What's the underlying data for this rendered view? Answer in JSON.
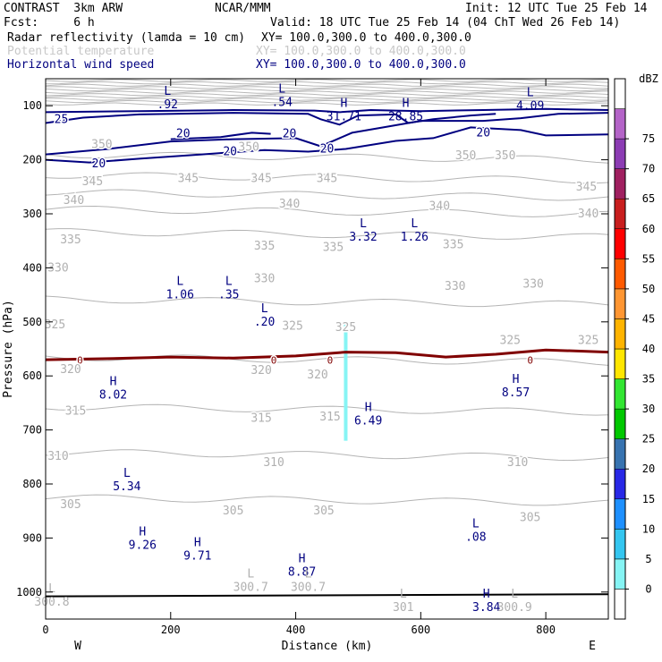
{
  "header": {
    "model": "CONTRAST  3km ARW",
    "org": "NCAR/MMM",
    "init": "Init: 12 UTC Tue 25 Feb 14",
    "fcst": "Fcst:     6 h",
    "valid": "Valid: 18 UTC Tue 25 Feb 14 (04 ChT Wed 26 Feb 14)",
    "fields": [
      {
        "name": "Radar reflectivity (lamda = 10 cm)",
        "xy": "XY= 100.0,300.0 to 400.0,300.0",
        "color": "#000000"
      },
      {
        "name": "Potential temperature",
        "xy": "XY= 100.0,300.0 to 400.0,300.0",
        "color": "#c8c8c8"
      },
      {
        "name": "Horizontal wind speed",
        "xy": "XY= 100.0,300.0 to 400.0,300.0",
        "color": "#000080"
      }
    ]
  },
  "chart_data": {
    "type": "cross-section contour",
    "xlabel": "Distance (km)",
    "ylabel": "Pressure (hPa)",
    "xlim": [
      0,
      900
    ],
    "ylim": [
      1050,
      50
    ],
    "x_ticks": [
      0,
      200,
      400,
      600,
      800
    ],
    "y_ticks": [
      100,
      200,
      300,
      400,
      500,
      600,
      700,
      800,
      900,
      1000
    ],
    "x_end_labels": {
      "left": "W",
      "right": "E"
    },
    "colorbar": {
      "unit": "dBZ",
      "levels": [
        0,
        5,
        10,
        15,
        20,
        25,
        30,
        35,
        40,
        45,
        50,
        55,
        60,
        65,
        70,
        75
      ],
      "colors": [
        "#ffffff",
        "#86f4f4",
        "#34c6f0",
        "#1e90ff",
        "#2828e6",
        "#3773b0",
        "#00c800",
        "#32e632",
        "#ffe600",
        "#ffb400",
        "#ff9632",
        "#ff5a00",
        "#ff0000",
        "#c81e1e",
        "#a02060",
        "#8c3cb4",
        "#b464c8",
        "#ffffff"
      ]
    },
    "theta_contours": [
      {
        "label": "350",
        "p": 195
      },
      {
        "label": "345",
        "p": 233
      },
      {
        "label": "340",
        "p": 265
      },
      {
        "label": "335",
        "p": 296
      },
      {
        "label": "330",
        "p": 338
      },
      {
        "label": "325",
        "p": 463
      },
      {
        "label": "320",
        "p": 570
      },
      {
        "label": "315",
        "p": 662
      },
      {
        "label": "310",
        "p": 746
      },
      {
        "label": "305",
        "p": 830
      }
    ],
    "theta_labels": [
      {
        "text": "350",
        "x": 90,
        "p": 172
      },
      {
        "text": "350",
        "x": 325,
        "p": 177
      },
      {
        "text": "350",
        "x": 672,
        "p": 192
      },
      {
        "text": "350",
        "x": 735,
        "p": 192
      },
      {
        "text": "345",
        "x": 75,
        "p": 240
      },
      {
        "text": "345",
        "x": 228,
        "p": 235
      },
      {
        "text": "345",
        "x": 345,
        "p": 235
      },
      {
        "text": "345",
        "x": 450,
        "p": 235
      },
      {
        "text": "345",
        "x": 865,
        "p": 250
      },
      {
        "text": "340",
        "x": 45,
        "p": 275
      },
      {
        "text": "340",
        "x": 390,
        "p": 282
      },
      {
        "text": "340",
        "x": 630,
        "p": 286
      },
      {
        "text": "340",
        "x": 868,
        "p": 300
      },
      {
        "text": "335",
        "x": 40,
        "p": 348
      },
      {
        "text": "335",
        "x": 350,
        "p": 360
      },
      {
        "text": "335",
        "x": 460,
        "p": 362
      },
      {
        "text": "335",
        "x": 652,
        "p": 357
      },
      {
        "text": "330",
        "x": 20,
        "p": 400
      },
      {
        "text": "330",
        "x": 350,
        "p": 420
      },
      {
        "text": "330",
        "x": 655,
        "p": 434
      },
      {
        "text": "330",
        "x": 780,
        "p": 430
      },
      {
        "text": "325",
        "x": 15,
        "p": 505
      },
      {
        "text": "325",
        "x": 395,
        "p": 508
      },
      {
        "text": "325",
        "x": 480,
        "p": 510
      },
      {
        "text": "325",
        "x": 743,
        "p": 534
      },
      {
        "text": "325",
        "x": 868,
        "p": 534
      },
      {
        "text": "320",
        "x": 40,
        "p": 588
      },
      {
        "text": "320",
        "x": 345,
        "p": 590
      },
      {
        "text": "320",
        "x": 435,
        "p": 598
      },
      {
        "text": "315",
        "x": 48,
        "p": 665
      },
      {
        "text": "315",
        "x": 345,
        "p": 678
      },
      {
        "text": "315",
        "x": 455,
        "p": 676
      },
      {
        "text": "310",
        "x": 20,
        "p": 749
      },
      {
        "text": "310",
        "x": 365,
        "p": 760
      },
      {
        "text": "310",
        "x": 755,
        "p": 760
      },
      {
        "text": "305",
        "x": 40,
        "p": 838
      },
      {
        "text": "305",
        "x": 300,
        "p": 850
      },
      {
        "text": "305",
        "x": 445,
        "p": 850
      },
      {
        "text": "305",
        "x": 775,
        "p": 862
      }
    ],
    "wind_contours": [
      {
        "label": "25",
        "x": 25,
        "p": 125
      },
      {
        "label": "20",
        "x": 220,
        "p": 152
      },
      {
        "label": "20",
        "x": 295,
        "p": 185
      },
      {
        "label": "20",
        "x": 390,
        "p": 152
      },
      {
        "label": "20",
        "x": 450,
        "p": 180
      },
      {
        "label": "20",
        "x": 700,
        "p": 150
      },
      {
        "label": "20",
        "x": 85,
        "p": 207
      }
    ],
    "zero_line_label": "0",
    "zero_line": [
      [
        0,
        570
      ],
      [
        100,
        568
      ],
      [
        200,
        565
      ],
      [
        300,
        567
      ],
      [
        400,
        563
      ],
      [
        480,
        556
      ],
      [
        560,
        557
      ],
      [
        640,
        565
      ],
      [
        720,
        560
      ],
      [
        800,
        552
      ],
      [
        900,
        556
      ]
    ],
    "extrema": [
      {
        "type": "L",
        "value": ".92",
        "x": 195,
        "p": 80,
        "field": "wind"
      },
      {
        "type": "L",
        "value": ".54",
        "x": 378,
        "p": 76,
        "field": "wind"
      },
      {
        "type": "H",
        "value": "31.71",
        "x": 477,
        "p": 102,
        "field": "wind"
      },
      {
        "type": "H",
        "value": "28.85",
        "x": 576,
        "p": 102,
        "field": "wind"
      },
      {
        "type": "L",
        "value": "4.09",
        "x": 775,
        "p": 82,
        "field": "wind"
      },
      {
        "type": "L",
        "value": "3.32",
        "x": 508,
        "p": 325,
        "field": "wind"
      },
      {
        "type": "L",
        "value": "1.26",
        "x": 590,
        "p": 325,
        "field": "wind"
      },
      {
        "type": "L",
        "value": "1.06",
        "x": 215,
        "p": 432,
        "field": "wind"
      },
      {
        "type": "L",
        "value": ".35",
        "x": 293,
        "p": 432,
        "field": "wind"
      },
      {
        "type": "L",
        "value": ".20",
        "x": 350,
        "p": 482,
        "field": "wind"
      },
      {
        "type": "H",
        "value": "8.02",
        "x": 108,
        "p": 617,
        "field": "wind"
      },
      {
        "type": "H",
        "value": "6.49",
        "x": 516,
        "p": 665,
        "field": "wind"
      },
      {
        "type": "H",
        "value": "8.57",
        "x": 752,
        "p": 613,
        "field": "wind"
      },
      {
        "type": "L",
        "value": "5.34",
        "x": 130,
        "p": 787,
        "field": "wind"
      },
      {
        "type": "L",
        "value": ".08",
        "x": 688,
        "p": 880,
        "field": "wind"
      },
      {
        "type": "H",
        "value": "9.26",
        "x": 155,
        "p": 895,
        "field": "wind"
      },
      {
        "type": "H",
        "value": "9.71",
        "x": 243,
        "p": 915,
        "field": "wind"
      },
      {
        "type": "H",
        "value": "8.87",
        "x": 410,
        "p": 945,
        "field": "wind"
      },
      {
        "type": "H",
        "value": "3.84",
        "x": 705,
        "p": 1010,
        "field": "wind"
      },
      {
        "type": "L",
        "value": "300.7",
        "x": 328,
        "p": 973,
        "field": "theta"
      },
      {
        "type": "L",
        "value": "300.7",
        "x": 420,
        "p": 973,
        "field": "theta"
      },
      {
        "type": "L",
        "value": "301",
        "x": 572,
        "p": 1010,
        "field": "theta"
      },
      {
        "type": "L",
        "value": "300.9",
        "x": 750,
        "p": 1010,
        "field": "theta"
      },
      {
        "type": "L",
        "value": "300.8",
        "x": 10,
        "p": 1000,
        "field": "theta"
      }
    ],
    "reflectivity_core": {
      "x": 480,
      "p_top": 505,
      "p_bottom": 720
    }
  }
}
